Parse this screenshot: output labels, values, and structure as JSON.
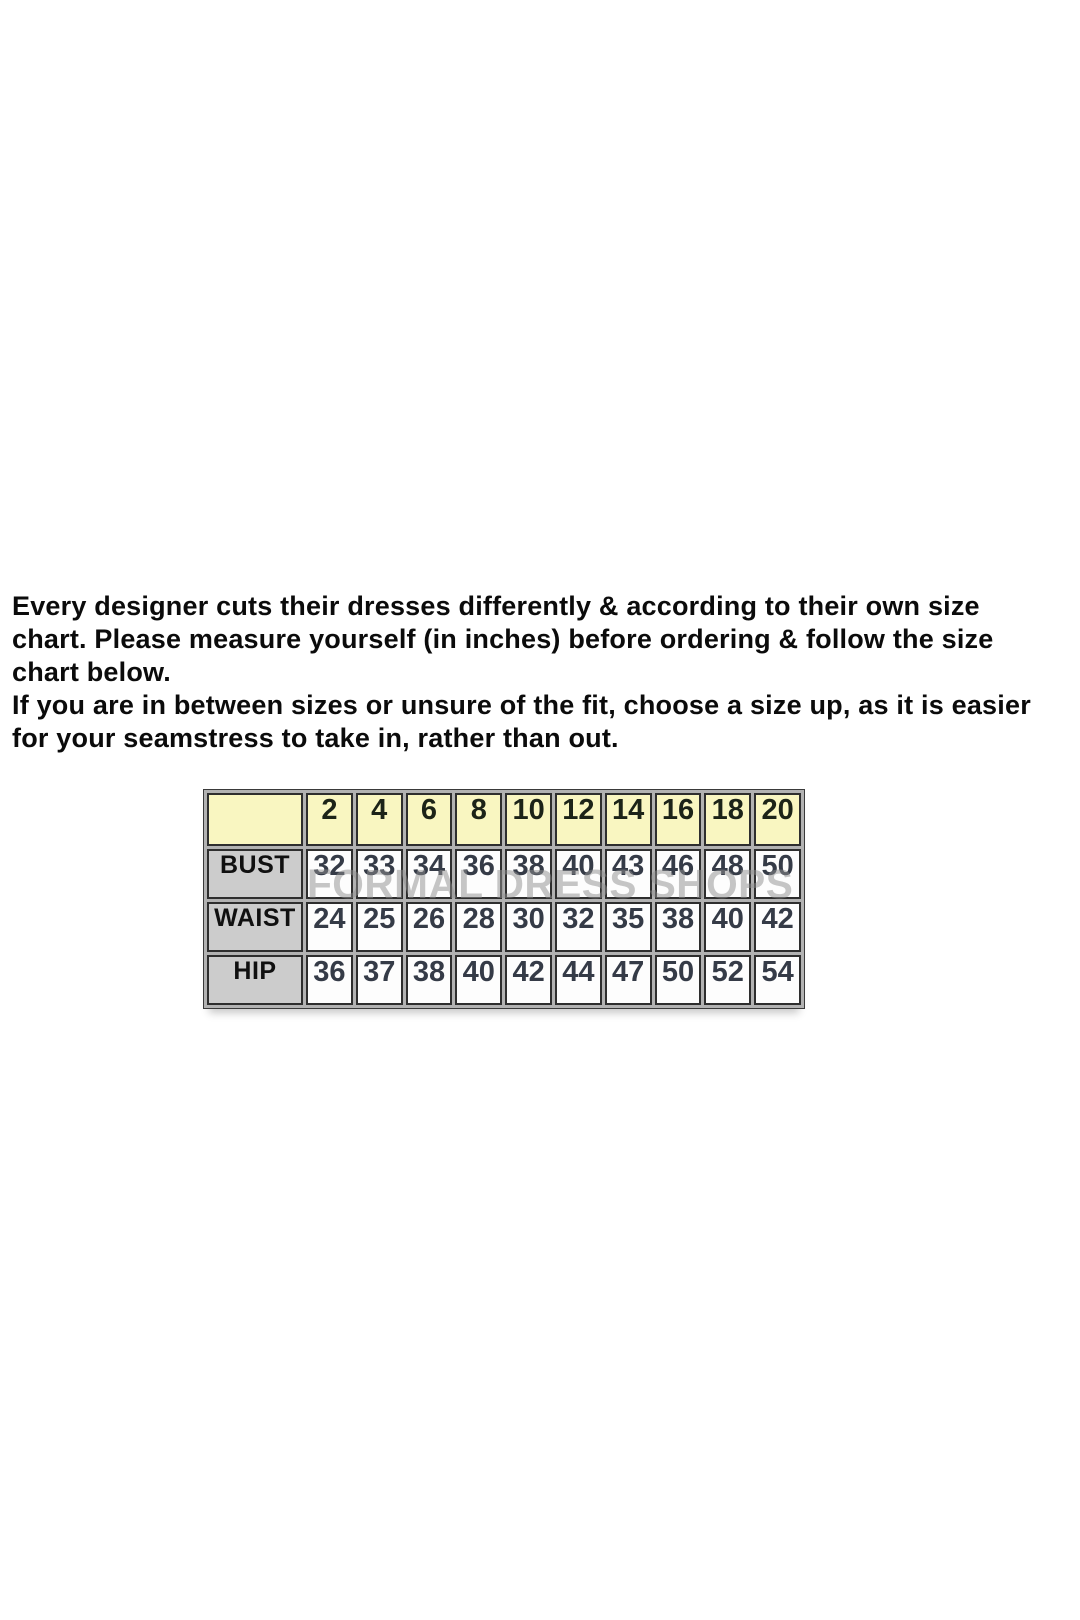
{
  "intro": {
    "lines": [
      "Every designer cuts their dresses differently & according to their own size",
      "chart. Please measure yourself (in inches) before ordering & follow the size",
      "chart below.",
      "If you are in between sizes or unsure of the fit, choose a size up, as it is easier",
      "for your seamstress to take in, rather than out."
    ]
  },
  "watermark": {
    "text": "FORMAL DRESS SHOPS"
  },
  "chart_data": {
    "type": "table",
    "sizes": [
      2,
      4,
      6,
      8,
      10,
      12,
      14,
      16,
      18,
      20
    ],
    "rows": [
      {
        "label": "BUST",
        "values": [
          32,
          33,
          34,
          36,
          38,
          40,
          43,
          46,
          48,
          50
        ]
      },
      {
        "label": "WAIST",
        "values": [
          24,
          25,
          26,
          28,
          30,
          32,
          35,
          38,
          40,
          42
        ]
      },
      {
        "label": "HIP",
        "values": [
          36,
          37,
          38,
          40,
          42,
          44,
          47,
          50,
          52,
          54
        ]
      }
    ]
  },
  "colors": {
    "header_bg": "#f9f6c1",
    "label_bg": "#cccccc",
    "value_bg": "#fdfdfd",
    "cell_border": "#2e2e2e",
    "grid_gap": "#b2b2b2",
    "watermark": "#8f8f8f",
    "text": "#0b0b0b"
  }
}
